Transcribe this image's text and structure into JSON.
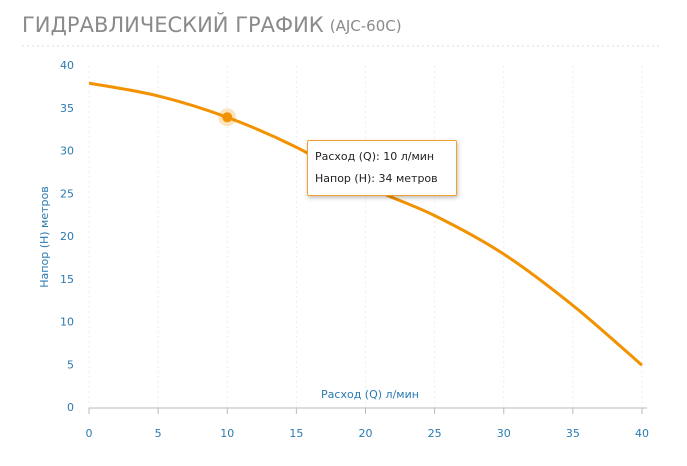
{
  "chart_data": {
    "type": "line",
    "title": "ГИДРАВЛИЧЕСКИЙ ГРАФИК",
    "subtitle": "(AJC-60C)",
    "x_label": "Расход (Q) л/мин",
    "y_label": "Напор (Н) метров",
    "x": [
      0,
      5,
      10,
      15,
      20,
      25,
      30,
      35,
      40
    ],
    "values": [
      38,
      36.5,
      34,
      30.5,
      26,
      22.5,
      18,
      12,
      5
    ],
    "color": "#f39200",
    "xlim": [
      0,
      40
    ],
    "xticks": [
      0,
      5,
      10,
      15,
      20,
      25,
      30,
      35,
      40
    ],
    "ylim": [
      0,
      40
    ],
    "yticks": [
      0,
      5,
      10,
      15,
      20,
      25,
      30,
      35,
      40
    ],
    "grid": true,
    "tooltip": [
      "Расход (Q): 10 л/мин",
      "Напор (Н):  34 метров"
    ]
  }
}
